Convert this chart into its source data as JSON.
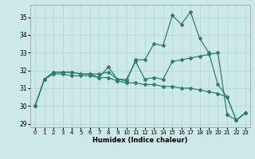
{
  "xlabel": "Humidex (Indice chaleur)",
  "xlim": [
    -0.5,
    23.5
  ],
  "ylim": [
    28.8,
    35.7
  ],
  "yticks": [
    29,
    30,
    31,
    32,
    33,
    34,
    35
  ],
  "xticks": [
    0,
    1,
    2,
    3,
    4,
    5,
    6,
    7,
    8,
    9,
    10,
    11,
    12,
    13,
    14,
    15,
    16,
    17,
    18,
    19,
    20,
    21,
    22,
    23
  ],
  "bg_color": "#cde8e8",
  "grid_color": "#b0d4d4",
  "line_color": "#2e7d6e",
  "series": [
    [
      30.0,
      31.5,
      31.9,
      31.9,
      31.9,
      31.8,
      31.8,
      31.6,
      32.2,
      31.5,
      31.4,
      32.6,
      32.6,
      33.5,
      33.4,
      35.1,
      34.6,
      35.3,
      33.8,
      33.0,
      31.2,
      30.5,
      29.2,
      29.6
    ],
    [
      30.0,
      31.5,
      31.9,
      31.9,
      31.9,
      31.8,
      31.8,
      31.8,
      31.9,
      31.5,
      31.5,
      32.5,
      31.5,
      31.6,
      31.5,
      32.5,
      32.6,
      32.7,
      32.8,
      32.9,
      33.0,
      29.5,
      29.2,
      29.6
    ],
    [
      30.0,
      31.5,
      31.8,
      31.8,
      31.7,
      31.7,
      31.7,
      31.6,
      31.6,
      31.4,
      31.3,
      31.3,
      31.2,
      31.2,
      31.1,
      31.1,
      31.0,
      31.0,
      30.9,
      30.8,
      30.7,
      30.5,
      29.2,
      29.6
    ]
  ]
}
